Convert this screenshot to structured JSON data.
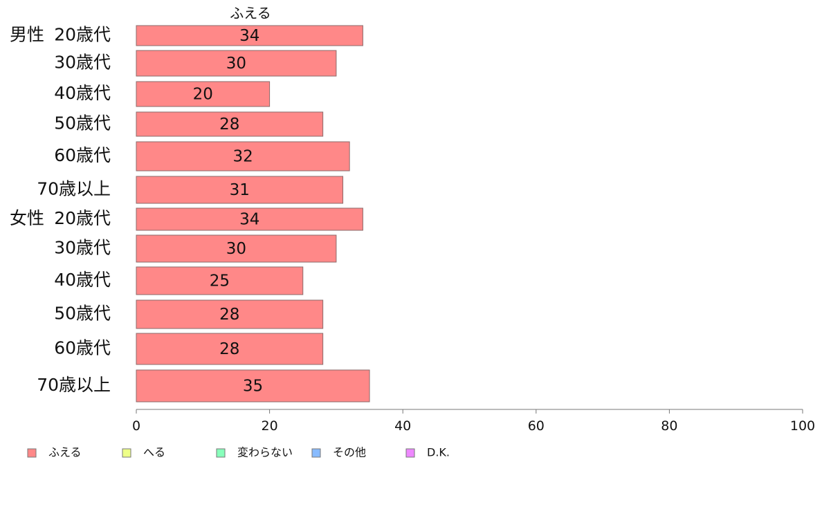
{
  "chart_data": {
    "type": "bar",
    "orientation": "horizontal",
    "series_title": "ふえる",
    "groups": [
      {
        "label": "男性",
        "categories": [
          "20歳代",
          "30歳代",
          "40歳代",
          "50歳代",
          "60歳代",
          "70歳以上"
        ],
        "values": [
          34,
          30,
          20,
          28,
          32,
          31
        ]
      },
      {
        "label": "女性",
        "categories": [
          "20歳代",
          "30歳代",
          "40歳代",
          "50歳代",
          "60歳代",
          "70歳以上"
        ],
        "values": [
          34,
          30,
          25,
          28,
          28,
          35
        ]
      }
    ],
    "xlim": [
      0,
      100
    ],
    "xticks": [
      0,
      20,
      40,
      60,
      80,
      100
    ],
    "legend": [
      {
        "label": "ふえる",
        "color": "#ff8888"
      },
      {
        "label": "へる",
        "color": "#eeff88"
      },
      {
        "label": "変わらない",
        "color": "#88ffbb"
      },
      {
        "label": "その他",
        "color": "#88bbff"
      },
      {
        "label": "D.K.",
        "color": "#ee88ff"
      }
    ],
    "legend_position": "bottom-left",
    "grid": false
  }
}
